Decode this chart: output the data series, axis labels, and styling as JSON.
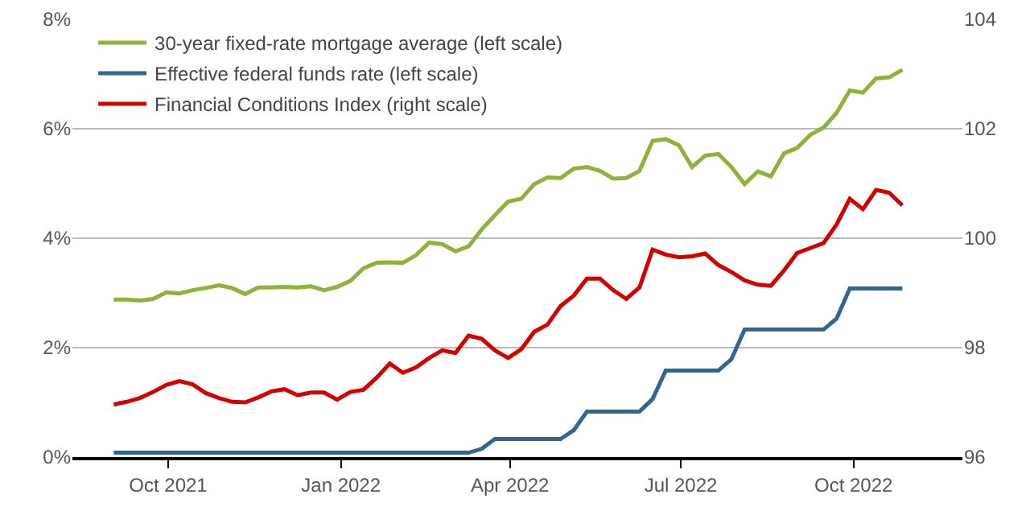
{
  "chart_data": {
    "type": "line",
    "x": [
      "2021-09-02",
      "2021-09-09",
      "2021-09-16",
      "2021-09-23",
      "2021-09-30",
      "2021-10-07",
      "2021-10-14",
      "2021-10-21",
      "2021-10-28",
      "2021-11-04",
      "2021-11-11",
      "2021-11-18",
      "2021-11-25",
      "2021-12-02",
      "2021-12-09",
      "2021-12-16",
      "2021-12-23",
      "2021-12-30",
      "2022-01-06",
      "2022-01-13",
      "2022-01-20",
      "2022-01-27",
      "2022-02-03",
      "2022-02-10",
      "2022-02-17",
      "2022-02-24",
      "2022-03-03",
      "2022-03-10",
      "2022-03-17",
      "2022-03-24",
      "2022-03-31",
      "2022-04-07",
      "2022-04-14",
      "2022-04-21",
      "2022-04-28",
      "2022-05-05",
      "2022-05-12",
      "2022-05-19",
      "2022-05-26",
      "2022-06-02",
      "2022-06-09",
      "2022-06-16",
      "2022-06-23",
      "2022-06-30",
      "2022-07-07",
      "2022-07-14",
      "2022-07-21",
      "2022-07-28",
      "2022-08-04",
      "2022-08-11",
      "2022-08-18",
      "2022-08-25",
      "2022-09-01",
      "2022-09-08",
      "2022-09-15",
      "2022-09-22",
      "2022-09-29",
      "2022-10-06",
      "2022-10-13",
      "2022-10-20",
      "2022-10-27"
    ],
    "series": [
      {
        "name": "30-year fixed-rate mortgage average (left scale)",
        "color": "#8db33a",
        "values": [
          2.88,
          2.88,
          2.86,
          2.89,
          3.01,
          2.99,
          3.05,
          3.09,
          3.14,
          3.09,
          2.98,
          3.1,
          3.1,
          3.11,
          3.1,
          3.12,
          3.05,
          3.11,
          3.22,
          3.45,
          3.55,
          3.56,
          3.55,
          3.69,
          3.92,
          3.89,
          3.76,
          3.85,
          4.16,
          4.42,
          4.67,
          4.72,
          4.99,
          5.11,
          5.1,
          5.27,
          5.3,
          5.23,
          5.09,
          5.1,
          5.23,
          5.78,
          5.81,
          5.7,
          5.3,
          5.51,
          5.54,
          5.3,
          4.99,
          5.22,
          5.13,
          5.55,
          5.65,
          5.89,
          6.02,
          6.29,
          6.7,
          6.66,
          6.92,
          6.94,
          7.08
        ]
      },
      {
        "name": "Effective federal funds rate (left scale)",
        "color": "#35648f",
        "values": [
          0.08,
          0.08,
          0.08,
          0.08,
          0.08,
          0.08,
          0.08,
          0.08,
          0.08,
          0.08,
          0.08,
          0.08,
          0.08,
          0.08,
          0.08,
          0.08,
          0.08,
          0.08,
          0.08,
          0.08,
          0.08,
          0.08,
          0.08,
          0.08,
          0.08,
          0.08,
          0.08,
          0.08,
          0.15,
          0.33,
          0.33,
          0.33,
          0.33,
          0.33,
          0.33,
          0.49,
          0.83,
          0.83,
          0.83,
          0.83,
          0.83,
          1.06,
          1.58,
          1.58,
          1.58,
          1.58,
          1.58,
          1.79,
          2.33,
          2.33,
          2.33,
          2.33,
          2.33,
          2.33,
          2.33,
          2.53,
          3.08,
          3.08,
          3.08,
          3.08,
          3.08
        ]
      },
      {
        "name": "Financial Conditions Index (right scale)",
        "color": "#d40000",
        "axis": "y2",
        "values": [
          96.96,
          97.01,
          97.08,
          97.19,
          97.32,
          97.39,
          97.33,
          97.17,
          97.08,
          97.01,
          97.0,
          97.09,
          97.2,
          97.24,
          97.13,
          97.18,
          97.18,
          97.05,
          97.19,
          97.23,
          97.45,
          97.71,
          97.54,
          97.64,
          97.81,
          97.95,
          97.9,
          98.22,
          98.16,
          97.95,
          97.81,
          97.97,
          98.29,
          98.42,
          98.76,
          98.95,
          99.26,
          99.26,
          99.05,
          98.89,
          99.1,
          99.79,
          99.7,
          99.65,
          99.67,
          99.72,
          99.51,
          99.38,
          99.23,
          99.15,
          99.13,
          99.41,
          99.73,
          99.82,
          99.91,
          100.25,
          100.72,
          100.53,
          100.88,
          100.83,
          100.6
        ]
      }
    ],
    "xlim": [
      "2021-08-11",
      "2022-11-28"
    ],
    "xticks": [
      {
        "value": "2021-10-01",
        "label": "Oct 2021"
      },
      {
        "value": "2022-01-01",
        "label": "Jan 2022"
      },
      {
        "value": "2022-04-01",
        "label": "Apr 2022"
      },
      {
        "value": "2022-07-01",
        "label": "Jul 2022"
      },
      {
        "value": "2022-10-01",
        "label": "Oct 2022"
      }
    ],
    "ylim": [
      0,
      8
    ],
    "yticks": [
      {
        "value": 0,
        "label": "0%"
      },
      {
        "value": 2,
        "label": "2%"
      },
      {
        "value": 4,
        "label": "4%"
      },
      {
        "value": 6,
        "label": "6%"
      },
      {
        "value": 8,
        "label": "8%"
      }
    ],
    "y2lim": [
      96,
      104
    ],
    "y2ticks": [
      96,
      98,
      100,
      102,
      104
    ],
    "grid": "y",
    "legend": "top left",
    "marker": "none",
    "line_style": "solid"
  }
}
